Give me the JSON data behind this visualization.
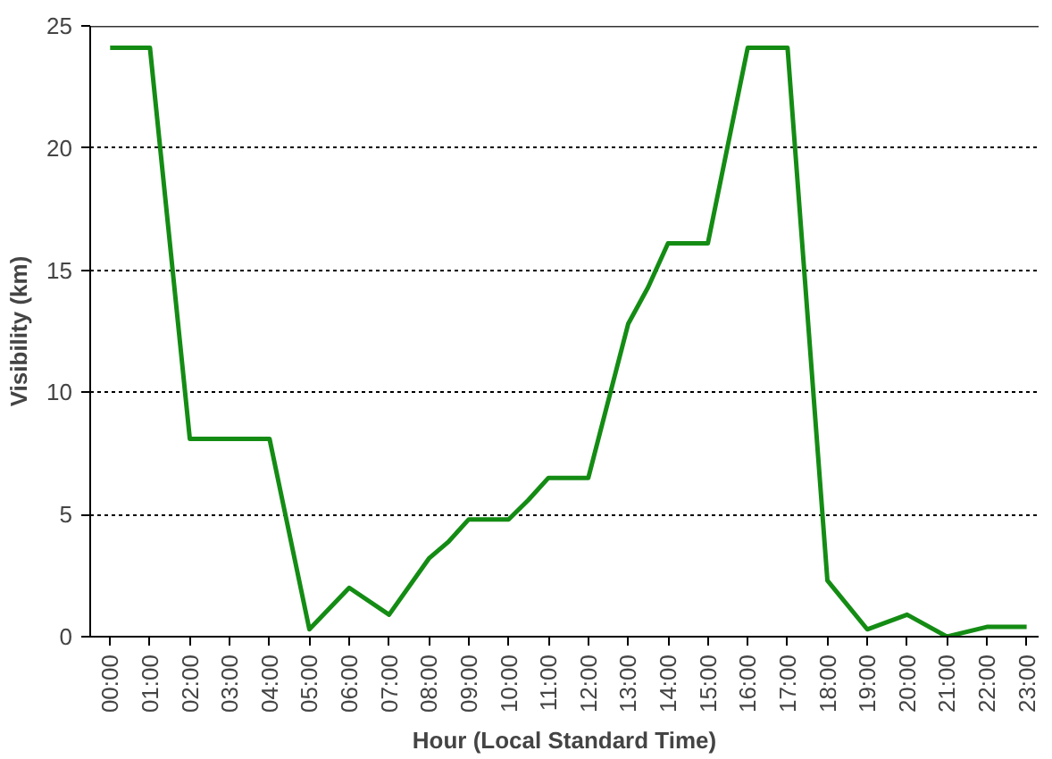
{
  "chart_data": {
    "type": "line",
    "xlabel": "Hour (Local Standard Time)",
    "ylabel": "Visibility (km)",
    "x": [
      0,
      1,
      2,
      3,
      4,
      5,
      6,
      7,
      8,
      8.5,
      9,
      10,
      10.5,
      11,
      12,
      13,
      13.5,
      14,
      15,
      16,
      17,
      18,
      19,
      20,
      21,
      22,
      23
    ],
    "series": [
      {
        "color": "#148c14",
        "values": [
          24.1,
          24.1,
          8.1,
          8.1,
          8.1,
          0.3,
          2.0,
          0.9,
          3.2,
          3.9,
          4.8,
          4.8,
          5.6,
          6.5,
          6.5,
          12.8,
          14.3,
          16.1,
          16.1,
          24.1,
          24.1,
          2.3,
          0.3,
          0.9,
          0.0,
          0.4,
          0.4
        ]
      }
    ],
    "xlim": [
      -0.5,
      23.3
    ],
    "ylim": [
      0,
      25
    ],
    "yticks": [
      0,
      5,
      10,
      15,
      20,
      25
    ],
    "xticks": [
      {
        "value": 0,
        "label": "00:00"
      },
      {
        "value": 1,
        "label": "01:00"
      },
      {
        "value": 2,
        "label": "02:00"
      },
      {
        "value": 3,
        "label": "03:00"
      },
      {
        "value": 4,
        "label": "04:00"
      },
      {
        "value": 5,
        "label": "05:00"
      },
      {
        "value": 6,
        "label": "06:00"
      },
      {
        "value": 7,
        "label": "07:00"
      },
      {
        "value": 8,
        "label": "08:00"
      },
      {
        "value": 9,
        "label": "09:00"
      },
      {
        "value": 10,
        "label": "10:00"
      },
      {
        "value": 11,
        "label": "11:00"
      },
      {
        "value": 12,
        "label": "12:00"
      },
      {
        "value": 13,
        "label": "13:00"
      },
      {
        "value": 14,
        "label": "14:00"
      },
      {
        "value": 15,
        "label": "15:00"
      },
      {
        "value": 16,
        "label": "16:00"
      },
      {
        "value": 17,
        "label": "17:00"
      },
      {
        "value": 18,
        "label": "18:00"
      },
      {
        "value": 19,
        "label": "19:00"
      },
      {
        "value": 20,
        "label": "20:00"
      },
      {
        "value": 21,
        "label": "21:00"
      },
      {
        "value": 22,
        "label": "22:00"
      },
      {
        "value": 23,
        "label": "23:00"
      }
    ],
    "grid": "y",
    "marker": "none",
    "line_style": "solid"
  }
}
